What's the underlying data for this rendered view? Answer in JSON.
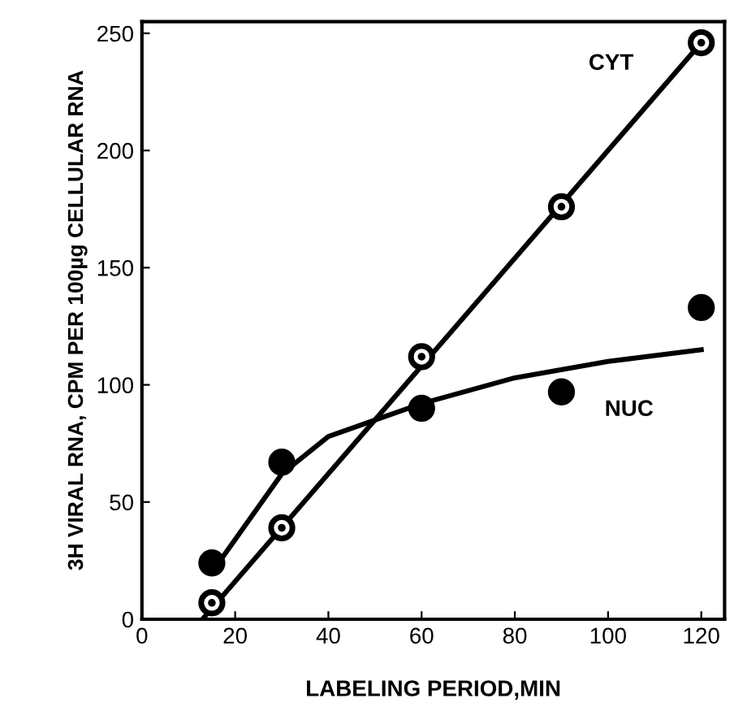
{
  "chart_data": {
    "type": "scatter",
    "xlabel": "LABELING PERIOD,MIN",
    "ylabel": "3H VIRAL RNA, CPM PER 100µg CELLULAR RNA",
    "xlim": [
      0,
      125
    ],
    "xticks": [
      0,
      20,
      40,
      60,
      80,
      100,
      120
    ],
    "ylim": [
      0,
      255
    ],
    "yticks": [
      0,
      50,
      100,
      150,
      200,
      250
    ],
    "grid": false,
    "legend": false,
    "series": [
      {
        "name": "CYT",
        "marker": "circle",
        "color": "#ffffff",
        "x": [
          15,
          30,
          60,
          90,
          120
        ],
        "values": [
          7,
          39,
          112,
          176,
          246
        ]
      },
      {
        "name": "NUC",
        "marker": "circle",
        "color": "#000000",
        "x": [
          15,
          30,
          60,
          90,
          120
        ],
        "values": [
          24,
          67,
          90,
          97,
          133
        ]
      },
      {
        "type": "line",
        "marker": "none",
        "color": "#000000",
        "x": [
          13,
          120
        ],
        "values": [
          0,
          246
        ]
      },
      {
        "type": "line",
        "marker": "none",
        "color": "#000000",
        "x": [
          15,
          30,
          40,
          60,
          80,
          100,
          120
        ],
        "values": [
          20,
          62,
          78,
          92,
          103,
          110,
          115
        ]
      }
    ]
  }
}
